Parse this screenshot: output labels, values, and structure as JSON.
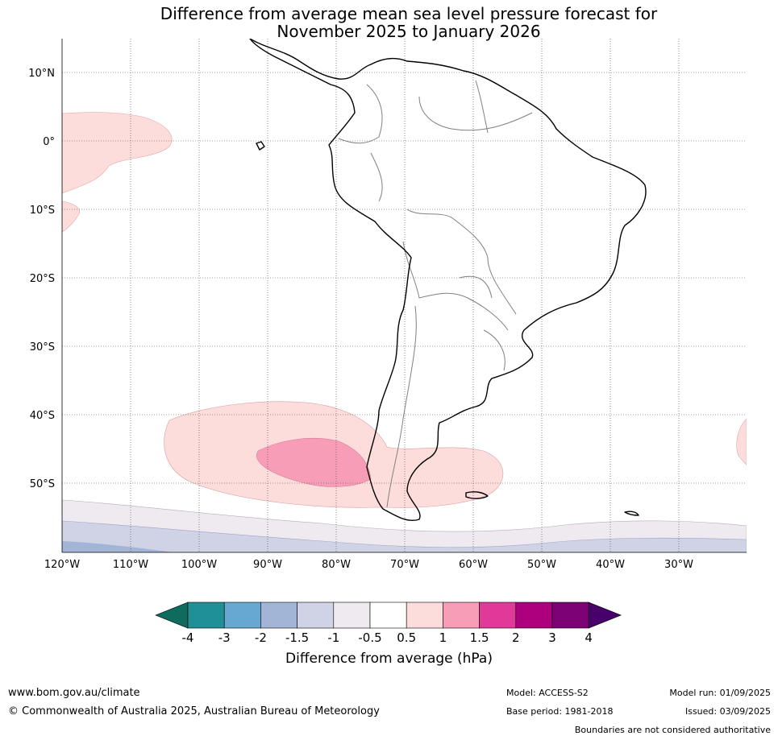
{
  "title": {
    "line1": "Difference from average mean sea level pressure forecast for",
    "line2": "November 2025 to January 2026"
  },
  "map": {
    "region": "South America",
    "lon_labels": [
      "120°W",
      "110°W",
      "100°W",
      "90°W",
      "80°W",
      "70°W",
      "60°W",
      "50°W",
      "40°W",
      "30°W"
    ],
    "lat_labels": [
      "10°N",
      "0°",
      "10°S",
      "20°S",
      "30°S",
      "40°S",
      "50°S"
    ],
    "gridlines": true
  },
  "colorbar": {
    "title": "Difference from average (hPa)",
    "ticks": [
      "-4",
      "-3",
      "-2",
      "-1.5",
      "-1",
      "-0.5",
      "0.5",
      "1",
      "1.5",
      "2",
      "3",
      "4"
    ],
    "colors": [
      "#0e6b5e",
      "#1f9096",
      "#67a8d0",
      "#a3b5d6",
      "#d0d2e6",
      "#efe9f0",
      "#ffffff",
      "#fddcdc",
      "#f79db8",
      "#e0399a",
      "#ad007e",
      "#7c0276",
      "#48006a"
    ]
  },
  "footer": {
    "website": "www.bom.gov.au/climate",
    "copyright": "© Commonwealth of Australia 2025, Australian Bureau of Meteorology",
    "model": "Model: ACCESS-S2",
    "base_period": "Base period: 1981-2018",
    "model_run": "Model run: 01/09/2025",
    "issued": "Issued: 03/09/2025",
    "disclaimer": "Boundaries are not considered authoritative"
  }
}
